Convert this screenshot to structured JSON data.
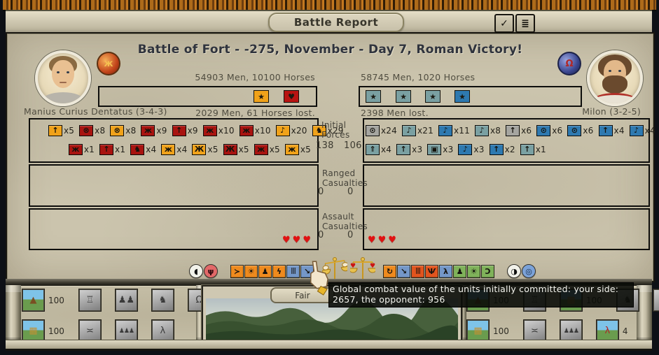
{
  "window": {
    "title": "Battle Report",
    "confirm_glyph": "✓",
    "report_glyph": "≣"
  },
  "header": {
    "title": "Battle of Fort - -275, November - Day 7, Roman Victory!"
  },
  "left_side": {
    "commander_label": "Manius Curius Dentatus (3-4-3)",
    "strength": "54903 Men, 10100 Horses",
    "losses": "2029 Men, 61 Horses lost.",
    "bar_chips": [
      {
        "bg": "#f0a21a",
        "glyph": "★"
      },
      {
        "bg": "#b81412",
        "glyph": "♥"
      }
    ],
    "forces_row1": [
      {
        "bg": "#f0a21a",
        "glyph": "↑",
        "count": "x5"
      },
      {
        "bg": "#a81410",
        "glyph": "⊗",
        "count": "x8"
      },
      {
        "bg": "#f0a21a",
        "glyph": "⊗",
        "count": "x8"
      },
      {
        "bg": "#a81410",
        "glyph": "ж",
        "count": "x9"
      },
      {
        "bg": "#a81410",
        "glyph": "↑",
        "count": "x9"
      },
      {
        "bg": "#a81410",
        "glyph": "ж",
        "count": "x10"
      },
      {
        "bg": "#a81410",
        "glyph": "ж",
        "count": "x10"
      },
      {
        "bg": "#f0a21a",
        "glyph": "♪",
        "count": "x20"
      },
      {
        "bg": "#f0a21a",
        "glyph": "♞",
        "count": "x29"
      }
    ],
    "forces_row2": [
      {
        "bg": "#a81410",
        "glyph": "ж",
        "count": "x1"
      },
      {
        "bg": "#a81410",
        "glyph": "↑",
        "count": "x1"
      },
      {
        "bg": "#a81410",
        "glyph": "♞",
        "count": "x4"
      },
      {
        "bg": "#f0a21a",
        "glyph": "ж",
        "count": "x4"
      },
      {
        "bg": "#f0a21a",
        "glyph": "Ж",
        "count": "x5"
      },
      {
        "bg": "#a81410",
        "glyph": "Ж",
        "count": "x5"
      },
      {
        "bg": "#a81410",
        "glyph": "ж",
        "count": "x5"
      },
      {
        "bg": "#f0a21a",
        "glyph": "ж",
        "count": "x5"
      }
    ],
    "assault_hearts": 3
  },
  "right_side": {
    "commander_label": "Milon (3-2-5)",
    "strength": "58745 Men, 1020 Horses",
    "losses": "2398 Men lost.",
    "bar_chips": [
      {
        "bg": "#7aa0a2",
        "glyph": "★"
      },
      {
        "bg": "#7aa0a2",
        "glyph": "★"
      },
      {
        "bg": "#7aa0a2",
        "glyph": "★"
      },
      {
        "bg": "#2e79b0",
        "glyph": "★"
      }
    ],
    "forces_row1": [
      {
        "bg": "#a5a5a0",
        "glyph": "⊙",
        "count": "x24"
      },
      {
        "bg": "#7aa0a2",
        "glyph": "♪",
        "count": "x21"
      },
      {
        "bg": "#2e79b0",
        "glyph": "♪",
        "count": "x11"
      },
      {
        "bg": "#7aa0a2",
        "glyph": "♪",
        "count": "x8"
      },
      {
        "bg": "#a5a5a0",
        "glyph": "↑",
        "count": "x6"
      },
      {
        "bg": "#2e79b0",
        "glyph": "⊙",
        "count": "x6"
      },
      {
        "bg": "#2e79b0",
        "glyph": "⊙",
        "count": "x6"
      },
      {
        "bg": "#2e79b0",
        "glyph": "↑",
        "count": "x4"
      },
      {
        "bg": "#2e79b0",
        "glyph": "♪",
        "count": "x4"
      }
    ],
    "forces_row2": [
      {
        "bg": "#7aa0a2",
        "glyph": "⇑",
        "count": "x4"
      },
      {
        "bg": "#7aa0a2",
        "glyph": "↑",
        "count": "x3"
      },
      {
        "bg": "#7aa0a2",
        "glyph": "▣",
        "count": "x3"
      },
      {
        "bg": "#2e79b0",
        "glyph": "♪",
        "count": "x3"
      },
      {
        "bg": "#2e79b0",
        "glyph": "↑",
        "count": "x2"
      },
      {
        "bg": "#7aa0a2",
        "glyph": "↑",
        "count": "x1"
      }
    ],
    "assault_hearts": 3
  },
  "center_column": {
    "initial_forces_label": "Initial Forces",
    "initial_left": "138",
    "initial_right": "106",
    "ranged_label": "Ranged Casualties",
    "ranged_left": "0",
    "ranged_right": "0",
    "assault_label": "Assault Casualties",
    "assault_left": "0",
    "assault_right": "0"
  },
  "action_icons": [
    {
      "kind": "round",
      "name": "horse-token-icon",
      "bg": "#f2f2ea",
      "glyph": "◖",
      "fg": "#111111"
    },
    {
      "kind": "round",
      "name": "rout-token-icon",
      "bg": "#e26868",
      "glyph": "ψ",
      "fg": "#2a070c"
    },
    {
      "kind": "gap"
    },
    {
      "kind": "square",
      "name": "advance-icon",
      "bg": "#ee8a1e",
      "glyph": "≻",
      "fg": "#14120e"
    },
    {
      "kind": "square",
      "name": "clash-icon",
      "bg": "#ee8a1e",
      "glyph": "☀",
      "fg": "#14120e"
    },
    {
      "kind": "square",
      "name": "overrun-icon",
      "bg": "#ee8a1e",
      "glyph": "♟",
      "fg": "#14120e"
    },
    {
      "kind": "square",
      "name": "charge-icon",
      "bg": "#ee8a1e",
      "glyph": "ϟ",
      "fg": "#14120e"
    },
    {
      "kind": "square",
      "name": "committed-units-icon",
      "bg": "#7497c8",
      "glyph": "|||",
      "fg": "#14120e"
    },
    {
      "kind": "square",
      "name": "pursuit-icon",
      "bg": "#7497c8",
      "glyph": "↘",
      "fg": "#14120e"
    },
    {
      "kind": "gap-sm"
    },
    {
      "kind": "scale",
      "name": "combat-value-scale-icon",
      "hearts": false
    },
    {
      "kind": "scale",
      "name": "casualty-scale-icon",
      "hearts": true
    },
    {
      "kind": "gap-sm"
    },
    {
      "kind": "square",
      "name": "retreat-icon",
      "bg": "#ee8a1e",
      "glyph": "↻",
      "fg": "#14120e"
    },
    {
      "kind": "square",
      "name": "withdraw-icon",
      "bg": "#7497c8",
      "glyph": "↘",
      "fg": "#14120e"
    },
    {
      "kind": "square",
      "name": "losses-icon",
      "bg": "#e1541e",
      "glyph": "|||",
      "fg": "#14120e"
    },
    {
      "kind": "square",
      "name": "surrender-icon",
      "bg": "#e1541e",
      "glyph": "Ѱ",
      "fg": "#14120e"
    },
    {
      "kind": "square",
      "name": "flee-icon",
      "bg": "#7497c8",
      "glyph": "λ",
      "fg": "#14120e"
    },
    {
      "kind": "square",
      "name": "hold-icon",
      "bg": "#7fb25a",
      "glyph": "♟",
      "fg": "#14120e"
    },
    {
      "kind": "square",
      "name": "skirmish-icon",
      "bg": "#7fb25a",
      "glyph": "☀",
      "fg": "#14120e"
    },
    {
      "kind": "square",
      "name": "night-icon",
      "bg": "#7fb25a",
      "glyph": "Ɔ",
      "fg": "#14120e"
    },
    {
      "kind": "gap"
    },
    {
      "kind": "round",
      "name": "moon-phase-icon",
      "bg": "#f2f2ea",
      "glyph": "◑",
      "fg": "#111111"
    },
    {
      "kind": "round",
      "name": "siege-ring-icon",
      "bg": "#7ba2d8",
      "glyph": "◎",
      "fg": "#152a46"
    }
  ],
  "tooltip": {
    "text": "Global combat value of the units initially committed: your side: 2657, the opponent: 956"
  },
  "weather": {
    "label": "Fair"
  },
  "bottom_left": {
    "rows": [
      [
        {
          "type": "tent",
          "label": "100"
        },
        {
          "type": "statue"
        },
        {
          "type": "people"
        },
        {
          "type": "cavalry"
        },
        {
          "type": "helmet"
        }
      ],
      [
        {
          "type": "crates",
          "label": "100"
        },
        {
          "type": "bridge"
        },
        {
          "type": "infantry"
        },
        {
          "type": "runner"
        }
      ]
    ]
  },
  "bottom_right": {
    "rows": [
      [
        {
          "type": "tent",
          "label": "100"
        },
        {
          "type": "statue"
        },
        {
          "type": "crates",
          "label": "100"
        },
        {
          "type": "cavalry"
        },
        {
          "type": "helmet"
        }
      ],
      [
        {
          "type": "crates",
          "label": "100"
        },
        {
          "type": "bridge"
        },
        {
          "type": "infantry"
        },
        {
          "type": "runner-red",
          "label": "4"
        }
      ]
    ]
  },
  "colors": {
    "parchment": "#cbc4ad",
    "roman_chip_orange": "#f0a21a",
    "roman_chip_red": "#a81410",
    "enemy_chip_blue": "#2e79b0",
    "enemy_chip_teal": "#7aa0a2",
    "heart_red": "#e01212"
  }
}
